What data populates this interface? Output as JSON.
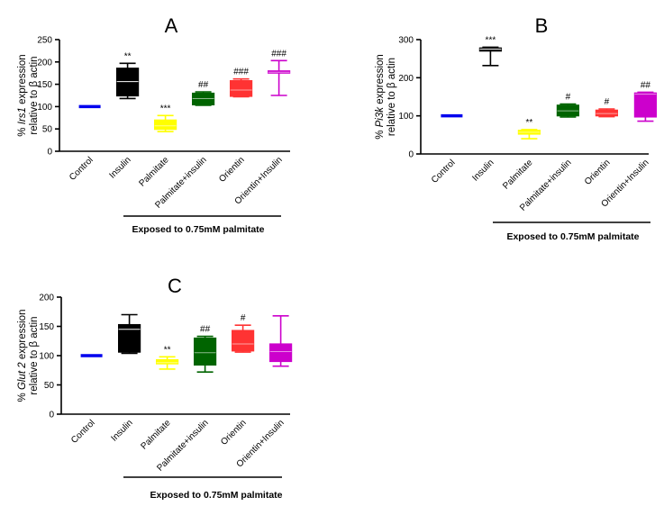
{
  "chart_data": [
    {
      "type": "box",
      "panel": "A",
      "ylabel_prefix": "% ",
      "ylabel_gene": "Irs1",
      "ylabel_suffix": " expression",
      "ylabel_line2": "relative to β actin",
      "yticks": [
        0,
        50,
        100,
        150,
        200,
        250
      ],
      "ylim": [
        0,
        250
      ],
      "categories": [
        "Control",
        "Insulin",
        "Palmitate",
        "Palmitate+insulin",
        "Orientin",
        "Orientin+Insulin"
      ],
      "colors": [
        "#0000ee",
        "#000000",
        "#ffff00",
        "#006400",
        "#ff3333",
        "#cc00cc"
      ],
      "boxes": [
        {
          "min": 100,
          "q1": 100,
          "median": 100,
          "q3": 100,
          "max": 100,
          "label": ""
        },
        {
          "min": 118,
          "q1": 124,
          "median": 156,
          "q3": 186,
          "max": 197,
          "label": "**"
        },
        {
          "min": 44,
          "q1": 49,
          "median": 57,
          "q3": 70,
          "max": 80,
          "label": "***"
        },
        {
          "min": 103,
          "q1": 104,
          "median": 118,
          "q3": 130,
          "max": 133,
          "label": "##"
        },
        {
          "min": 122,
          "q1": 123,
          "median": 137,
          "q3": 158,
          "max": 162,
          "label": "###"
        },
        {
          "min": 125,
          "q1": 175,
          "median": 177,
          "q3": 180,
          "max": 203,
          "label": "###"
        }
      ],
      "group_label": "Exposed to 0.75mM palmitate"
    },
    {
      "type": "box",
      "panel": "B",
      "ylabel_prefix": "% ",
      "ylabel_gene": "Pi3k",
      "ylabel_suffix": " expression",
      "ylabel_line2": "relative to β actin",
      "yticks": [
        0,
        100,
        200,
        300
      ],
      "ylim": [
        0,
        300
      ],
      "categories": [
        "Control",
        "Insulin",
        "Palmitate",
        "Palmitate+insulin",
        "Orientin",
        "Orientin+Insulin"
      ],
      "colors": [
        "#0000ee",
        "#000000",
        "#ffff00",
        "#006400",
        "#ff3333",
        "#cc00cc"
      ],
      "boxes": [
        {
          "min": 100,
          "q1": 100,
          "median": 100,
          "q3": 100,
          "max": 100,
          "label": ""
        },
        {
          "min": 232,
          "q1": 270,
          "median": 275,
          "q3": 278,
          "max": 280,
          "label": "***"
        },
        {
          "min": 40,
          "q1": 52,
          "median": 57,
          "q3": 62,
          "max": 64,
          "label": "**"
        },
        {
          "min": 97,
          "q1": 100,
          "median": 113,
          "q3": 128,
          "max": 131,
          "label": "#"
        },
        {
          "min": 98,
          "q1": 100,
          "median": 106,
          "q3": 115,
          "max": 118,
          "label": "#"
        },
        {
          "min": 86,
          "q1": 97,
          "median": 157,
          "q3": 160,
          "max": 162,
          "label": "##"
        }
      ],
      "group_label": "Exposed to 0.75mM palmitate"
    },
    {
      "type": "box",
      "panel": "C",
      "ylabel_prefix": "% ",
      "ylabel_gene": "Glut 2",
      "ylabel_suffix": " expression",
      "ylabel_line2": "relative to β actin",
      "yticks": [
        0,
        50,
        100,
        150,
        200
      ],
      "ylim": [
        0,
        200
      ],
      "categories": [
        "Control",
        "Insulin",
        "Palmitate",
        "Palmitate+insulin",
        "Orientin",
        "Orientin+Insulin"
      ],
      "colors": [
        "#0000ee",
        "#000000",
        "#ffff00",
        "#006400",
        "#ff3333",
        "#cc00cc"
      ],
      "boxes": [
        {
          "min": 100,
          "q1": 100,
          "median": 100,
          "q3": 100,
          "max": 100,
          "label": ""
        },
        {
          "min": 104,
          "q1": 106,
          "median": 145,
          "q3": 153,
          "max": 170,
          "label": ""
        },
        {
          "min": 77,
          "q1": 86,
          "median": 88,
          "q3": 93,
          "max": 98,
          "label": "**"
        },
        {
          "min": 72,
          "q1": 84,
          "median": 105,
          "q3": 130,
          "max": 133,
          "label": "##"
        },
        {
          "min": 106,
          "q1": 108,
          "median": 120,
          "q3": 143,
          "max": 152,
          "label": "#"
        },
        {
          "min": 82,
          "q1": 90,
          "median": 107,
          "q3": 120,
          "max": 168,
          "label": ""
        }
      ],
      "group_label": "Exposed to 0.75mM palmitate"
    }
  ]
}
